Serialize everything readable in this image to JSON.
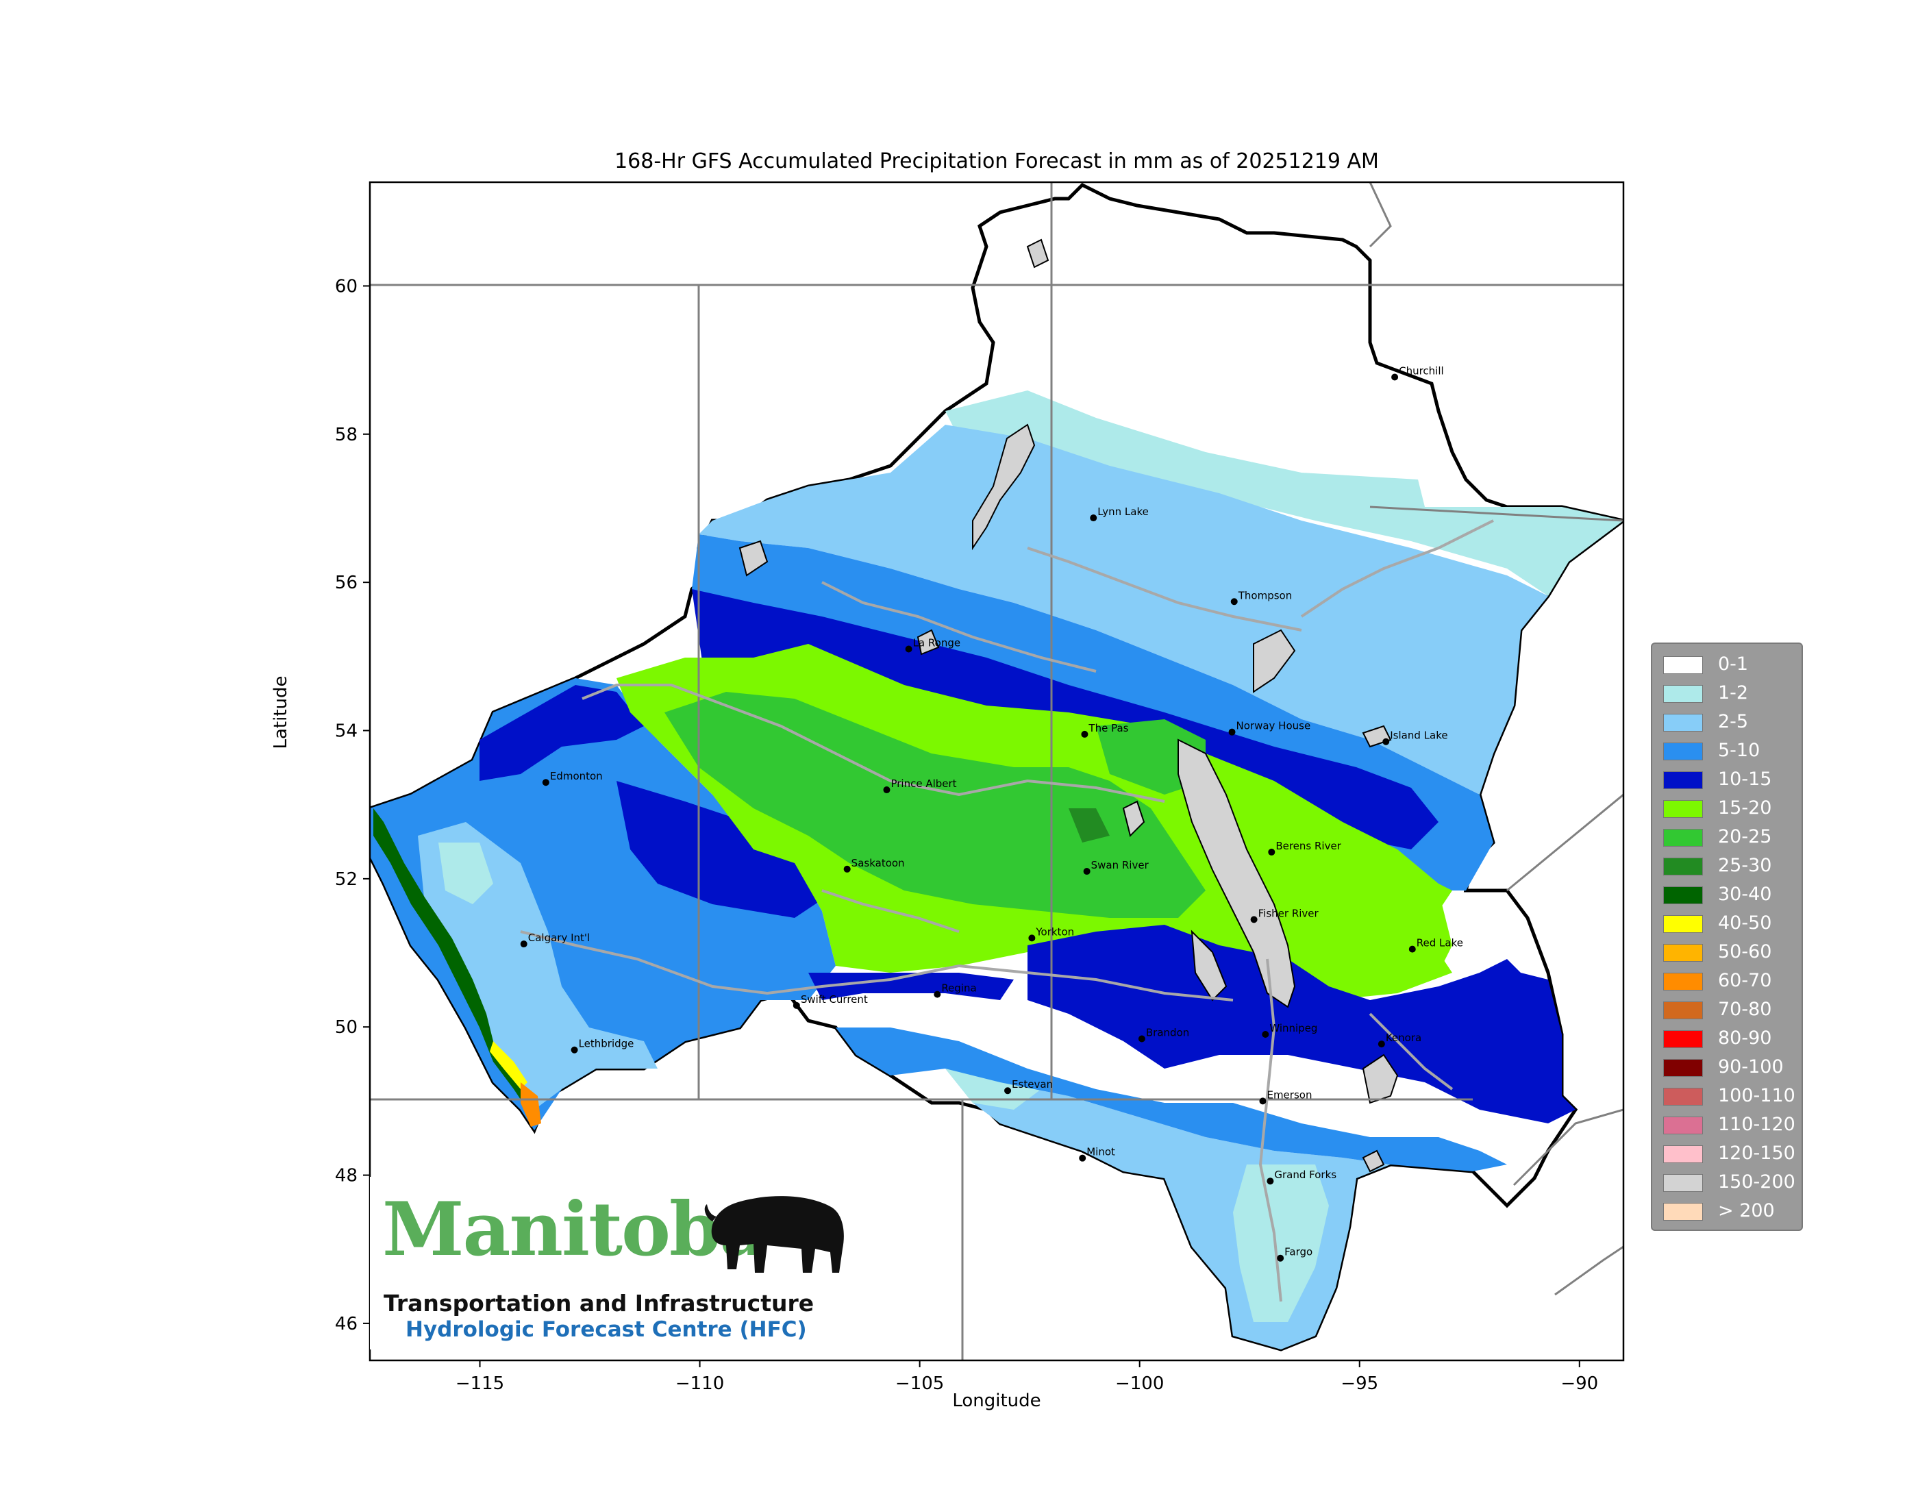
{
  "title": "168-Hr GFS Accumulated Precipitation Forecast in mm as of 20251219 AM",
  "xlabel": "Longitude",
  "ylabel": "Latitude",
  "axes": {
    "lon_range": [
      -117.5,
      -89
    ],
    "lat_range": [
      45.5,
      61.4
    ],
    "x_ticks": [
      {
        "value": -115,
        "label": "−115"
      },
      {
        "value": -110,
        "label": "−110"
      },
      {
        "value": -105,
        "label": "−105"
      },
      {
        "value": -100,
        "label": "−100"
      },
      {
        "value": -95,
        "label": "−95"
      },
      {
        "value": -90,
        "label": "−90"
      }
    ],
    "y_ticks": [
      {
        "value": 46,
        "label": "46"
      },
      {
        "value": 48,
        "label": "48"
      },
      {
        "value": 50,
        "label": "50"
      },
      {
        "value": 52,
        "label": "52"
      },
      {
        "value": 54,
        "label": "54"
      },
      {
        "value": 56,
        "label": "56"
      },
      {
        "value": 58,
        "label": "58"
      },
      {
        "value": 60,
        "label": "60"
      }
    ]
  },
  "legend": [
    {
      "label": "0-1",
      "color": "#ffffff"
    },
    {
      "label": "1-2",
      "color": "#aeeaea"
    },
    {
      "label": "2-5",
      "color": "#87cdf8"
    },
    {
      "label": "5-10",
      "color": "#2a8ff0"
    },
    {
      "label": "10-15",
      "color": "#0010c8"
    },
    {
      "label": "15-20",
      "color": "#7cf800"
    },
    {
      "label": "20-25",
      "color": "#32c832"
    },
    {
      "label": "25-30",
      "color": "#228b22"
    },
    {
      "label": "30-40",
      "color": "#006400"
    },
    {
      "label": "40-50",
      "color": "#ffff00"
    },
    {
      "label": "50-60",
      "color": "#ffb400"
    },
    {
      "label": "60-70",
      "color": "#ff8c00"
    },
    {
      "label": "70-80",
      "color": "#d2691e"
    },
    {
      "label": "80-90",
      "color": "#ff0000"
    },
    {
      "label": "90-100",
      "color": "#800000"
    },
    {
      "label": "100-110",
      "color": "#cd5c5c"
    },
    {
      "label": "110-120",
      "color": "#db7093"
    },
    {
      "label": "120-150",
      "color": "#ffc0cb"
    },
    {
      "label": "150-200",
      "color": "#d3d3d3"
    },
    {
      "label": "> 200",
      "color": "#ffdab9"
    }
  ],
  "cities": [
    {
      "name": "Churchill",
      "lon": -94.2,
      "lat": 58.77
    },
    {
      "name": "Lynn Lake",
      "lon": -101.05,
      "lat": 56.87
    },
    {
      "name": "Thompson",
      "lon": -97.85,
      "lat": 55.74
    },
    {
      "name": "La Ronge",
      "lon": -105.25,
      "lat": 55.1
    },
    {
      "name": "Norway House",
      "lon": -97.9,
      "lat": 53.98
    },
    {
      "name": "Island Lake",
      "lon": -94.4,
      "lat": 53.85
    },
    {
      "name": "Edmonton",
      "lon": -113.5,
      "lat": 53.3
    },
    {
      "name": "Prince Albert",
      "lon": -105.75,
      "lat": 53.2
    },
    {
      "name": "The Pas",
      "lon": -101.25,
      "lat": 53.95
    },
    {
      "name": "Berens River",
      "lon": -97.0,
      "lat": 52.36
    },
    {
      "name": "Saskatoon",
      "lon": -106.65,
      "lat": 52.13
    },
    {
      "name": "Swan River",
      "lon": -101.2,
      "lat": 52.1
    },
    {
      "name": "Fisher River",
      "lon": -97.4,
      "lat": 51.45
    },
    {
      "name": "Red Lake",
      "lon": -93.8,
      "lat": 51.05
    },
    {
      "name": "Yorkton",
      "lon": -102.45,
      "lat": 51.2
    },
    {
      "name": "Calgary Int'l",
      "lon": -114.0,
      "lat": 51.12
    },
    {
      "name": "Swift Current",
      "lon": -107.8,
      "lat": 50.29
    },
    {
      "name": "Regina",
      "lon": -104.6,
      "lat": 50.44
    },
    {
      "name": "Brandon",
      "lon": -99.95,
      "lat": 49.84
    },
    {
      "name": "Winnipeg",
      "lon": -97.14,
      "lat": 49.9
    },
    {
      "name": "Kenora",
      "lon": -94.5,
      "lat": 49.77
    },
    {
      "name": "Lethbridge",
      "lon": -112.85,
      "lat": 49.69
    },
    {
      "name": "Estevan",
      "lon": -103.0,
      "lat": 49.14
    },
    {
      "name": "Emerson",
      "lon": -97.2,
      "lat": 49.0
    },
    {
      "name": "Minot",
      "lon": -101.3,
      "lat": 48.23
    },
    {
      "name": "Grand Forks",
      "lon": -97.03,
      "lat": 47.92
    },
    {
      "name": "Fargo",
      "lon": -96.8,
      "lat": 46.88
    }
  ],
  "logo": {
    "wordmark": "Manitoba",
    "line1": "Transportation and Infrastructure",
    "line2": "Hydrologic Forecast Centre (HFC)"
  }
}
